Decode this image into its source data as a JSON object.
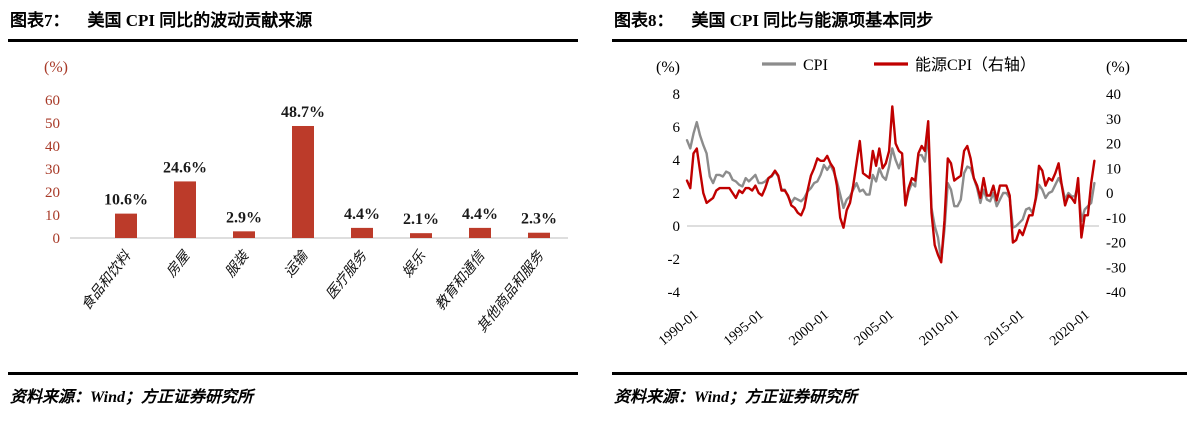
{
  "panels": [
    {
      "figure_label": "图表7：",
      "title": "美国 CPI 同比的波动贡献来源",
      "source": "资料来源：Wind；方正证券研究所"
    },
    {
      "figure_label": "图表8：",
      "title": "美国 CPI 同比与能源项基本同步",
      "source": "资料来源：Wind；方正证券研究所"
    }
  ],
  "chart_data": [
    {
      "type": "bar",
      "title": "美国 CPI 同比的波动贡献来源",
      "unit_label": "(%)",
      "categories": [
        "食品和饮料",
        "房屋",
        "服装",
        "运输",
        "医疗服务",
        "娱乐",
        "教育和通信",
        "其他商品和服务"
      ],
      "values": [
        10.6,
        24.6,
        2.9,
        48.7,
        4.4,
        2.1,
        4.4,
        2.3
      ],
      "value_labels": [
        "10.6%",
        "24.6%",
        "2.9%",
        "48.7%",
        "4.4%",
        "2.1%",
        "4.4%",
        "2.3%"
      ],
      "ylim": [
        0,
        60
      ],
      "yticks": [
        60,
        50,
        40,
        30,
        20,
        10,
        0
      ],
      "grid": false,
      "bar_color": "#bc3b2a",
      "axis_text_color": "#a83a28",
      "label_color": "#1a1a1a"
    },
    {
      "type": "line",
      "title": "美国 CPI 同比与能源项基本同步",
      "left_unit_label": "(%)",
      "right_unit_label": "(%)",
      "left_ylim": [
        -4,
        8
      ],
      "left_yticks": [
        8,
        6,
        4,
        2,
        0,
        -2,
        -4
      ],
      "right_ylim": [
        -40,
        40
      ],
      "right_yticks": [
        40,
        30,
        20,
        10,
        0,
        -10,
        -20,
        -30,
        -40
      ],
      "x_ticks": [
        "1990-01",
        "1995-01",
        "2000-01",
        "2005-01",
        "2010-01",
        "2015-01",
        "2020-01"
      ],
      "x_tick_values": [
        1990,
        1995,
        2000,
        2005,
        2010,
        2015,
        2020
      ],
      "x_range": [
        1990,
        2021.6
      ],
      "x_start": 1990,
      "x_step": 0.25,
      "grid": false,
      "legend_position": "top",
      "series": [
        {
          "name": "CPI",
          "axis": "left",
          "color": "#8c8c8c",
          "values": [
            5.2,
            4.7,
            5.6,
            6.3,
            5.5,
            4.9,
            4.4,
            3.0,
            2.6,
            3.1,
            3.1,
            3.0,
            3.3,
            3.2,
            2.8,
            2.7,
            2.5,
            2.4,
            2.9,
            2.7,
            2.9,
            3.1,
            2.6,
            2.6,
            2.7,
            2.9,
            3.0,
            3.3,
            3.0,
            2.2,
            2.2,
            1.8,
            1.4,
            1.7,
            1.6,
            1.5,
            1.7,
            2.1,
            2.3,
            2.6,
            2.7,
            3.1,
            3.7,
            3.4,
            3.7,
            3.3,
            2.7,
            1.9,
            1.1,
            1.6,
            1.8,
            2.2,
            2.6,
            2.1,
            2.2,
            1.9,
            1.9,
            3.1,
            2.7,
            3.5,
            3.0,
            2.8,
            3.6,
            4.7,
            4.0,
            3.5,
            4.1,
            1.3,
            2.1,
            2.6,
            2.4,
            4.3,
            4.3,
            3.9,
            5.6,
            1.1,
            0.0,
            -0.7,
            -2.1,
            -0.2,
            2.6,
            2.2,
            1.2,
            1.2,
            1.6,
            3.2,
            3.6,
            3.5,
            2.9,
            2.3,
            1.4,
            2.2,
            1.6,
            1.5,
            2.0,
            1.2,
            1.6,
            2.0,
            2.0,
            1.7,
            -0.1,
            0.0,
            0.2,
            0.4,
            1.0,
            1.1,
            0.8,
            1.6,
            2.5,
            2.2,
            1.7,
            2.0,
            2.1,
            2.5,
            2.9,
            2.5,
            1.6,
            2.0,
            1.8,
            1.8,
            2.5,
            0.3,
            1.0,
            1.2,
            1.4,
            2.6
          ]
        },
        {
          "name": "能源CPI（右轴）",
          "axis": "right",
          "color": "#c00000",
          "values": [
            5,
            2,
            16,
            18,
            9,
            0,
            -4,
            -3,
            -2,
            1,
            2,
            2,
            2,
            2,
            0,
            -2,
            1,
            0,
            2,
            2,
            1,
            3,
            0,
            -1,
            2,
            6,
            7,
            9,
            7,
            1,
            1,
            -1,
            -5,
            -6,
            -8,
            -9,
            -6,
            1,
            7,
            10,
            14,
            13,
            13,
            15,
            12,
            10,
            3,
            -10,
            -14,
            -7,
            -4,
            3,
            12,
            21,
            8,
            7,
            6,
            17,
            11,
            18,
            10,
            12,
            17,
            35,
            20,
            17,
            16,
            -5,
            2,
            6,
            5,
            16,
            19,
            17,
            29,
            -8,
            -21,
            -25,
            -28,
            -11,
            14,
            12,
            5,
            6,
            7,
            17,
            19,
            14,
            6,
            3,
            -2,
            6,
            -1,
            -1,
            3,
            -3,
            3,
            3,
            3,
            -1,
            -20,
            -19,
            -15,
            -17,
            -13,
            -9,
            -9,
            -2,
            11,
            9,
            3,
            6,
            5,
            8,
            12,
            3,
            -5,
            -1,
            -2,
            -4,
            6,
            -18,
            -9,
            -9,
            4,
            13
          ]
        }
      ]
    }
  ]
}
